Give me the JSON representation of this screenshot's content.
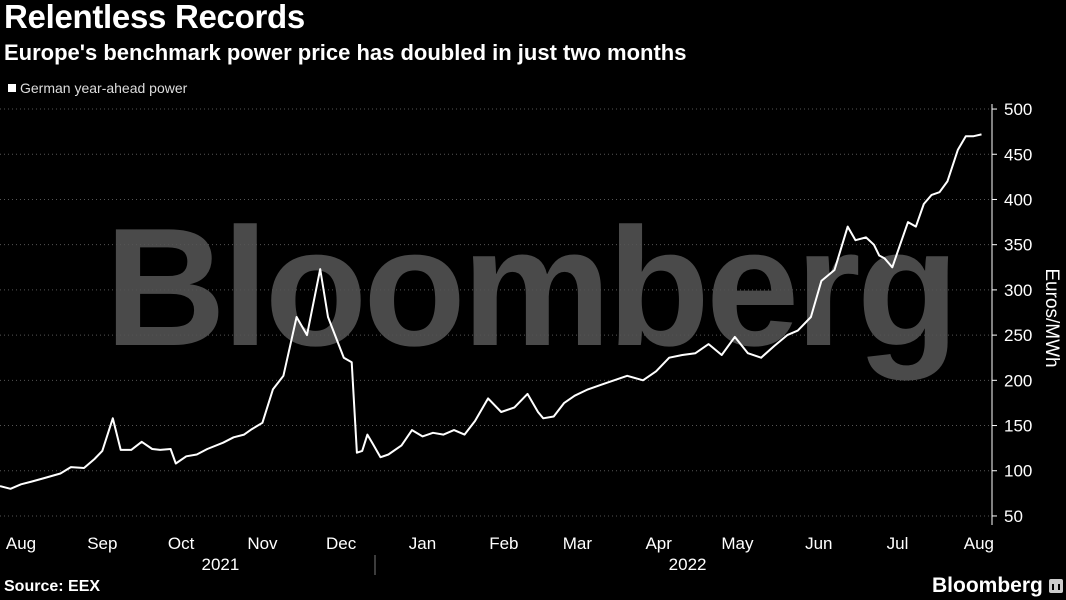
{
  "header": {
    "title": "Relentless Records",
    "subtitle": "Europe's benchmark power price has doubled in just two months"
  },
  "footer": {
    "source": "Source: EEX",
    "brand": "Bloomberg"
  },
  "watermark": "Bloomberg",
  "colors": {
    "background": "#000000",
    "line": "#ffffff",
    "grid": "#555555",
    "watermark": "#4a4a4a"
  },
  "chart_data": {
    "type": "line",
    "ylabel": "Euros/MWh",
    "ylim": [
      40,
      510
    ],
    "xlim": [
      "2021-08-01",
      "2022-08-14"
    ],
    "yticks": [
      50,
      100,
      150,
      200,
      250,
      300,
      350,
      400,
      450,
      500
    ],
    "grid": "horizontal dotted",
    "legend_position": "top-left",
    "month_labels": [
      {
        "label": "Aug",
        "date": "2021-08-09"
      },
      {
        "label": "Sep",
        "date": "2021-09-09"
      },
      {
        "label": "Oct",
        "date": "2021-10-09"
      },
      {
        "label": "Nov",
        "date": "2021-11-09"
      },
      {
        "label": "Dec",
        "date": "2021-12-09"
      },
      {
        "label": "Jan",
        "date": "2022-01-09"
      },
      {
        "label": "Feb",
        "date": "2022-02-09"
      },
      {
        "label": "Mar",
        "date": "2022-03-09"
      },
      {
        "label": "Apr",
        "date": "2022-04-09"
      },
      {
        "label": "May",
        "date": "2022-05-09"
      },
      {
        "label": "Jun",
        "date": "2022-06-09"
      },
      {
        "label": "Jul",
        "date": "2022-07-09"
      },
      {
        "label": "Aug",
        "date": "2022-08-09"
      }
    ],
    "year_labels": [
      {
        "label": "2021",
        "date": "2021-10-24"
      },
      {
        "label": "2022",
        "date": "2022-04-20"
      }
    ],
    "series": [
      {
        "name": "German year-ahead power",
        "x": [
          "2021-08-01",
          "2021-08-05",
          "2021-08-09",
          "2021-08-13",
          "2021-08-18",
          "2021-08-24",
          "2021-08-28",
          "2021-09-02",
          "2021-09-06",
          "2021-09-09",
          "2021-09-13",
          "2021-09-16",
          "2021-09-20",
          "2021-09-24",
          "2021-09-28",
          "2021-10-01",
          "2021-10-05",
          "2021-10-07",
          "2021-10-11",
          "2021-10-15",
          "2021-10-19",
          "2021-10-25",
          "2021-10-29",
          "2021-11-02",
          "2021-11-05",
          "2021-11-09",
          "2021-11-13",
          "2021-11-17",
          "2021-11-22",
          "2021-11-26",
          "2021-12-01",
          "2021-12-04",
          "2021-12-08",
          "2021-12-10",
          "2021-12-13",
          "2021-12-15",
          "2021-12-17",
          "2021-12-19",
          "2021-12-21",
          "2021-12-23",
          "2021-12-24",
          "2021-12-27",
          "2022-01-01",
          "2022-01-05",
          "2022-01-09",
          "2022-01-13",
          "2022-01-17",
          "2022-01-21",
          "2022-01-25",
          "2022-01-29",
          "2022-02-03",
          "2022-02-08",
          "2022-02-13",
          "2022-02-18",
          "2022-02-22",
          "2022-02-24",
          "2022-02-28",
          "2022-03-04",
          "2022-03-08",
          "2022-03-13",
          "2022-03-18",
          "2022-03-23",
          "2022-03-28",
          "2022-04-03",
          "2022-04-08",
          "2022-04-13",
          "2022-04-18",
          "2022-04-23",
          "2022-04-28",
          "2022-05-03",
          "2022-05-08",
          "2022-05-13",
          "2022-05-18",
          "2022-05-23",
          "2022-05-28",
          "2022-06-01",
          "2022-06-06",
          "2022-06-10",
          "2022-06-15",
          "2022-06-20",
          "2022-06-23",
          "2022-06-27",
          "2022-06-30",
          "2022-07-02",
          "2022-07-04",
          "2022-07-07",
          "2022-07-10",
          "2022-07-13",
          "2022-07-16",
          "2022-07-19",
          "2022-07-22",
          "2022-07-25",
          "2022-07-28",
          "2022-08-01",
          "2022-08-04",
          "2022-08-07",
          "2022-08-10"
        ],
        "values": [
          83,
          80,
          85,
          88,
          92,
          97,
          104,
          103,
          113,
          122,
          158,
          123,
          123,
          132,
          124,
          123,
          124,
          108,
          116,
          118,
          124,
          131,
          137,
          140,
          146,
          153,
          190,
          205,
          270,
          250,
          323,
          270,
          240,
          225,
          220,
          120,
          122,
          140,
          130,
          120,
          115,
          118,
          128,
          145,
          138,
          142,
          140,
          145,
          140,
          155,
          180,
          165,
          170,
          185,
          165,
          158,
          160,
          175,
          183,
          190,
          195,
          200,
          205,
          200,
          210,
          225,
          228,
          230,
          240,
          228,
          248,
          230,
          225,
          238,
          250,
          255,
          270,
          310,
          322,
          370,
          355,
          358,
          350,
          338,
          335,
          325,
          350,
          375,
          370,
          395,
          405,
          408,
          420,
          455,
          470,
          470,
          472
        ]
      }
    ]
  }
}
